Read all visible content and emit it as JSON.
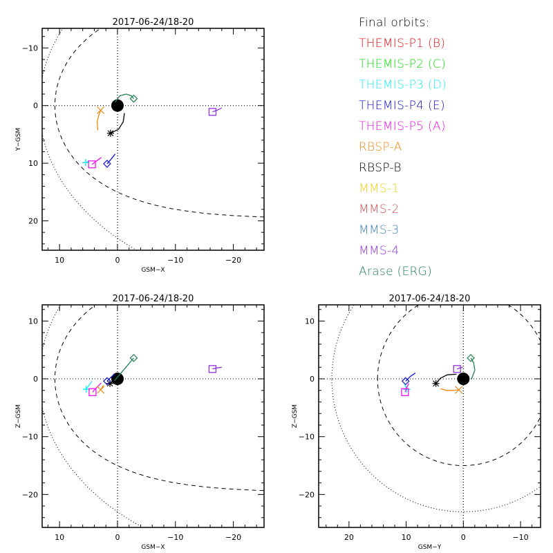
{
  "legend": {
    "title": "Final orbits:",
    "items": [
      {
        "label": "THEMIS-P1 (B)",
        "color": "#e81010"
      },
      {
        "label": "THEMIS-P2 (C)",
        "color": "#10e010"
      },
      {
        "label": "THEMIS-P3 (D)",
        "color": "#20eeee"
      },
      {
        "label": "THEMIS-P4 (E)",
        "color": "#1010c8"
      },
      {
        "label": "THEMIS-P5 (A)",
        "color": "#ee10ee"
      },
      {
        "label": "RBSP-A",
        "color": "#f08a10"
      },
      {
        "label": "RBSP-B",
        "color": "#000000"
      },
      {
        "label": "MMS-1",
        "color": "#f0d010"
      },
      {
        "label": "MMS-2",
        "color": "#d05050"
      },
      {
        "label": "MMS-3",
        "color": "#4080c0"
      },
      {
        "label": "MMS-4",
        "color": "#9030e0"
      },
      {
        "label": "Arase (ERG)",
        "color": "#208050"
      }
    ]
  },
  "chart_data": [
    {
      "type": "scatter",
      "title": "2017-06-24/18-20",
      "xlabel": "GSM-X",
      "ylabel": "Y-GSM",
      "xlim": [
        13,
        -25.3
      ],
      "ylim": [
        -13.4,
        25.1
      ],
      "xticks": [
        10,
        0,
        -10,
        -20
      ],
      "yticks": [
        -10,
        0,
        10,
        20
      ],
      "boundaries": {
        "magnetopause": "dashed",
        "bow_shock": "dotted"
      },
      "spacecraft": [
        {
          "name": "THEMIS-P3 (D)",
          "marker": "plus",
          "color": "#20eeee",
          "pos": [
            5.5,
            9.9
          ],
          "trail": [
            [
              5.0,
              9.6
            ],
            [
              5.5,
              9.9
            ]
          ]
        },
        {
          "name": "THEMIS-P5 (A)",
          "marker": "square",
          "color": "#ee10ee",
          "pos": [
            4.4,
            10.2
          ],
          "trail": [
            [
              2.8,
              9.0
            ],
            [
              3.6,
              9.6
            ],
            [
              4.4,
              10.2
            ]
          ]
        },
        {
          "name": "THEMIS-P4 (E)",
          "marker": "diamond",
          "color": "#1010c8",
          "pos": [
            1.8,
            10.1
          ],
          "trail": [
            [
              0.4,
              8.4
            ],
            [
              1.1,
              9.3
            ],
            [
              1.8,
              10.1
            ]
          ]
        },
        {
          "name": "RBSP-A",
          "marker": "x",
          "color": "#f08a10",
          "pos": [
            2.9,
            0.8
          ],
          "trail": [
            [
              3.4,
              4.3
            ],
            [
              3.5,
              2.8
            ],
            [
              3.2,
              1.6
            ],
            [
              2.9,
              0.8
            ]
          ]
        },
        {
          "name": "RBSP-B",
          "marker": "asterisk",
          "color": "#000000",
          "pos": [
            1.2,
            4.8
          ],
          "trail": [
            [
              -1.2,
              1.3
            ],
            [
              -1.0,
              2.8
            ],
            [
              -0.2,
              4.1
            ],
            [
              1.2,
              4.8
            ]
          ]
        },
        {
          "name": "Arase (ERG)",
          "marker": "diamond",
          "color": "#208050",
          "pos": [
            -2.8,
            -1.2
          ],
          "trail": [
            [
              0.4,
              -0.6
            ],
            [
              -0.4,
              -1.7
            ],
            [
              -1.5,
              -2.0
            ],
            [
              -2.4,
              -1.7
            ],
            [
              -2.8,
              -1.2
            ]
          ]
        },
        {
          "name": "MMS-4",
          "marker": "square",
          "color": "#9030e0",
          "pos": [
            -16.4,
            1.1
          ],
          "trail": [
            [
              -18.0,
              0.4
            ],
            [
              -17.2,
              0.8
            ],
            [
              -16.4,
              1.1
            ]
          ]
        }
      ]
    },
    {
      "type": "scatter",
      "title": "2017-06-24/18-20",
      "xlabel": "GSM-X",
      "ylabel": "Z-GSM",
      "xlim": [
        13,
        -25.3
      ],
      "ylim": [
        12.8,
        -25.7
      ],
      "xticks": [
        10,
        0,
        -10,
        -20
      ],
      "yticks": [
        10,
        0,
        -10,
        -20
      ],
      "boundaries": {
        "magnetopause": "dashed",
        "bow_shock": "dotted"
      },
      "spacecraft": [
        {
          "name": "THEMIS-P3 (D)",
          "marker": "plus",
          "color": "#20eeee",
          "pos": [
            5.4,
            -1.8
          ],
          "trail": [
            [
              4.4,
              -0.4
            ],
            [
              4.9,
              -1.1
            ],
            [
              5.4,
              -1.8
            ]
          ]
        },
        {
          "name": "THEMIS-P5 (A)",
          "marker": "square",
          "color": "#ee10ee",
          "pos": [
            4.3,
            -2.3
          ],
          "trail": [
            [
              2.8,
              -0.7
            ],
            [
              3.6,
              -1.5
            ],
            [
              4.3,
              -2.3
            ]
          ]
        },
        {
          "name": "RBSP-A",
          "marker": "x",
          "color": "#f08a10",
          "pos": [
            2.9,
            -1.9
          ],
          "trail": [
            [
              2.4,
              -1.1
            ],
            [
              2.9,
              -1.9
            ]
          ]
        },
        {
          "name": "RBSP-B",
          "marker": "asterisk",
          "color": "#000000",
          "pos": [
            1.3,
            -0.8
          ],
          "trail": [
            [
              -0.3,
              0.3
            ],
            [
              0.5,
              -0.3
            ],
            [
              1.3,
              -0.8
            ]
          ]
        },
        {
          "name": "THEMIS-P4 (E)",
          "marker": "diamond",
          "color": "#1010c8",
          "pos": [
            1.8,
            -0.4
          ],
          "trail": [
            [
              0.4,
              0.8
            ],
            [
              1.1,
              0.3
            ],
            [
              1.8,
              -0.4
            ]
          ]
        },
        {
          "name": "Arase (ERG)",
          "marker": "diamond",
          "color": "#208050",
          "pos": [
            -2.8,
            3.6
          ],
          "trail": [
            [
              0.5,
              -0.3
            ],
            [
              -1.2,
              1.7
            ],
            [
              -2.8,
              3.6
            ]
          ]
        },
        {
          "name": "MMS-4",
          "marker": "square",
          "color": "#9030e0",
          "pos": [
            -16.4,
            1.7
          ],
          "trail": [
            [
              -18.0,
              2.0
            ],
            [
              -17.2,
              1.9
            ],
            [
              -16.4,
              1.7
            ]
          ]
        }
      ]
    },
    {
      "type": "scatter",
      "title": "2017-06-24/18-20",
      "xlabel": "GSM-Y",
      "ylabel": "Z-GSM",
      "xlim": [
        25.3,
        -13.5
      ],
      "ylim": [
        12.8,
        -25.7
      ],
      "xticks": [
        20,
        10,
        0,
        -10
      ],
      "yticks": [
        10,
        0,
        -10,
        -20
      ],
      "boundaries": {
        "magnetopause": "dashed",
        "bow_shock": "dotted"
      },
      "spacecraft": [
        {
          "name": "THEMIS-P4 (E)",
          "marker": "diamond",
          "color": "#1010c8",
          "pos": [
            10.1,
            -0.4
          ],
          "trail": [
            [
              8.4,
              1.0
            ],
            [
              9.3,
              0.4
            ],
            [
              10.1,
              -0.4
            ]
          ]
        },
        {
          "name": "THEMIS-P3 (D)",
          "marker": "plus",
          "color": "#20eeee",
          "pos": [
            9.9,
            -1.8
          ],
          "trail": [
            [
              10.3,
              -0.9
            ],
            [
              9.9,
              -1.8
            ]
          ]
        },
        {
          "name": "THEMIS-P5 (A)",
          "marker": "square",
          "color": "#ee10ee",
          "pos": [
            10.2,
            -2.3
          ],
          "trail": [
            [
              9.5,
              -0.8
            ],
            [
              9.9,
              -1.5
            ],
            [
              10.2,
              -2.3
            ]
          ]
        },
        {
          "name": "RBSP-B",
          "marker": "asterisk",
          "color": "#000000",
          "pos": [
            4.8,
            -0.8
          ],
          "trail": [
            [
              1.2,
              0.8
            ],
            [
              2.8,
              0.7
            ],
            [
              4.0,
              0.1
            ],
            [
              4.8,
              -0.8
            ]
          ]
        },
        {
          "name": "RBSP-A",
          "marker": "x",
          "color": "#f08a10",
          "pos": [
            0.8,
            -1.9
          ],
          "trail": [
            [
              4.0,
              -1.7
            ],
            [
              3.0,
              -2.0
            ],
            [
              1.8,
              -2.0
            ],
            [
              0.8,
              -1.9
            ]
          ]
        },
        {
          "name": "MMS-4",
          "marker": "square",
          "color": "#9030e0",
          "pos": [
            1.1,
            1.7
          ],
          "trail": [
            [
              0.1,
              2.0
            ],
            [
              0.6,
              1.9
            ],
            [
              1.1,
              1.7
            ]
          ]
        },
        {
          "name": "Arase (ERG)",
          "marker": "diamond",
          "color": "#208050",
          "pos": [
            -1.3,
            3.6
          ],
          "trail": [
            [
              -1.4,
              -0.1
            ],
            [
              -2.0,
              1.5
            ],
            [
              -1.8,
              2.8
            ],
            [
              -1.3,
              3.6
            ]
          ]
        }
      ]
    }
  ]
}
